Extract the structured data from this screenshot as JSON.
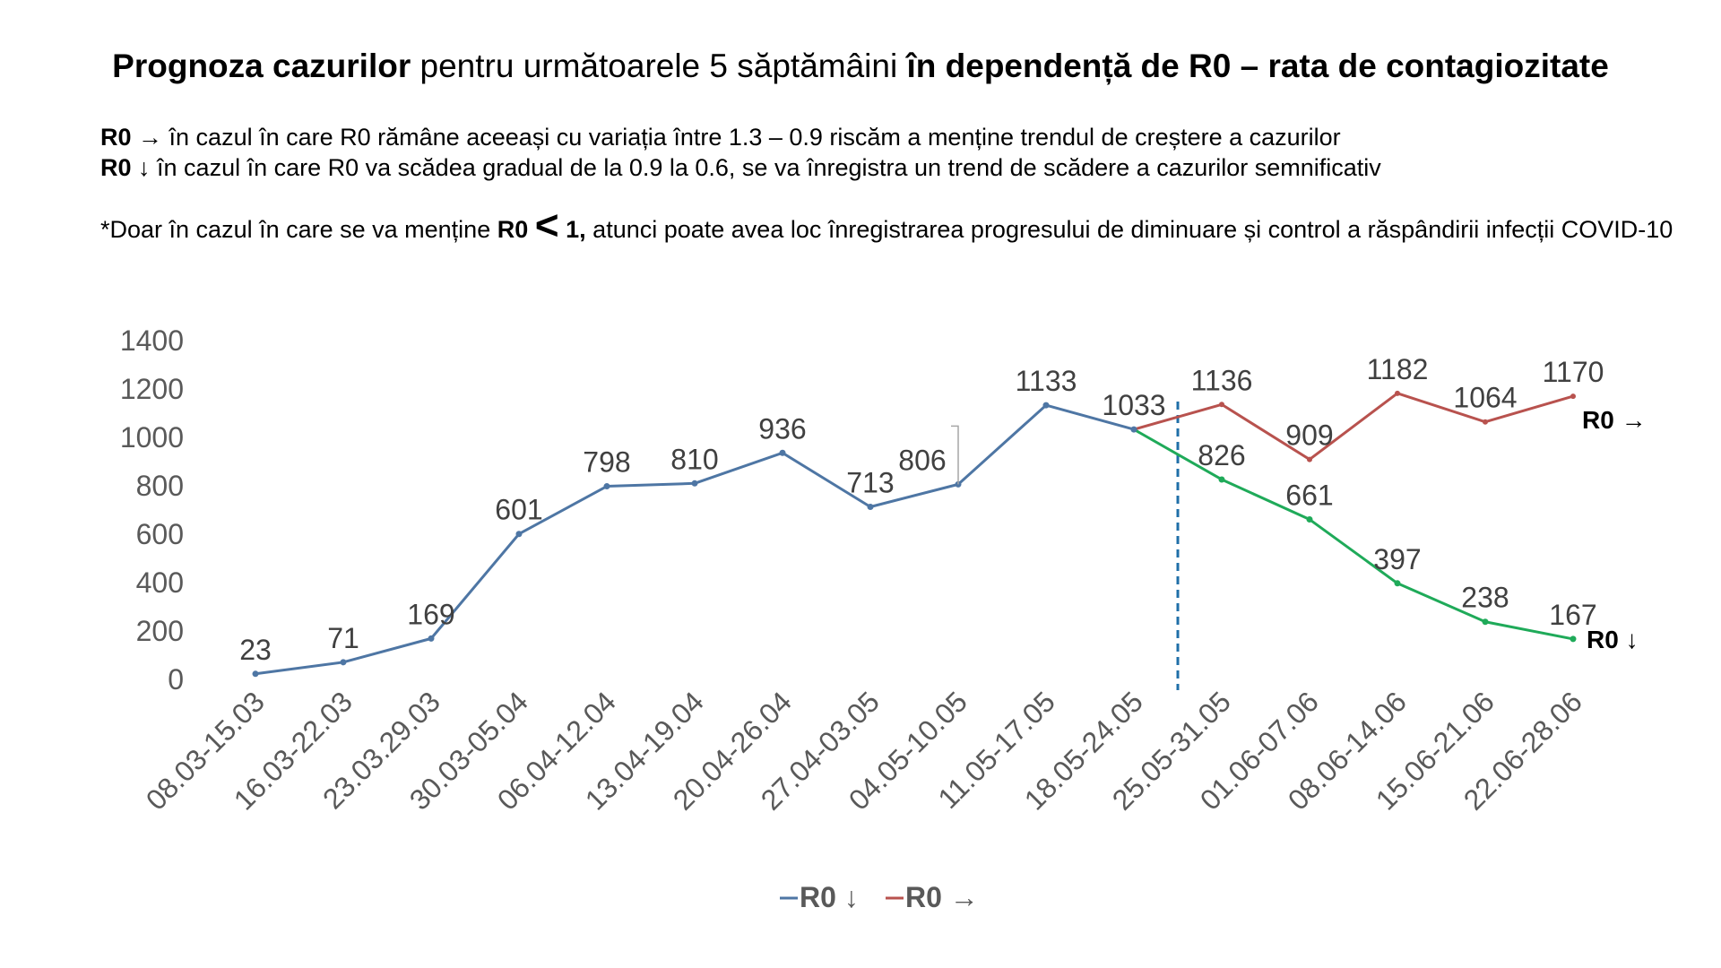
{
  "header": {
    "title_b1": "Prognoza cazurilor",
    "title_n1": " pentru următoarele 5 săptămâini ",
    "title_b2": "în dependență de R0 – rata de contagiozitate"
  },
  "notes": [
    {
      "label": "R0 →",
      "text": "  în cazul în care R0 rămâne aceeași cu variația între 1.3 – 0.9 riscăm a menține trendul de creștere a cazurilor"
    },
    {
      "label": "R0 ↓",
      "text": "  în cazul în care R0 va scădea gradual de la 0.9 la 0.6, se va înregistra un trend de scădere a cazurilor semnificativ"
    }
  ],
  "footnote": {
    "p1": "*Doar în cazul în care se va menține ",
    "r0": "R0",
    "lt": "<",
    "one": "1,",
    "p2": " atunci poate avea loc înregistrarea progresului de diminuare și control a răspândirii infecții COVID-10"
  },
  "chart_data": {
    "type": "line",
    "title": "",
    "categories": [
      "08.03-15.03",
      "16.03-22.03",
      "23.03.29.03",
      "30.03-05.04",
      "06.04-12.04",
      "13.04-19.04",
      "20.04-26.04",
      "27.04-03.05",
      "04.05-10.05",
      "11.05-17.05",
      "18.05-24.05",
      "25.05-31.05",
      "01.06-07.06",
      "08.06-14.06",
      "15.06-21.06",
      "22.06-28.06"
    ],
    "ylim": [
      0,
      1400
    ],
    "yticks": [
      "0",
      "200",
      "400",
      "600",
      "800",
      "1000",
      "1200",
      "1400"
    ],
    "forecast_start_index": 10,
    "series": [
      {
        "name": "R0 ↓",
        "history_color": "#4e76a4",
        "forecast_color": "#1faa59",
        "values": [
          23,
          71,
          169,
          601,
          798,
          810,
          936,
          713,
          806,
          1133,
          1033,
          826,
          661,
          397,
          238,
          167
        ]
      },
      {
        "name": "R0 →",
        "color": "#b8524e",
        "values": [
          null,
          null,
          null,
          null,
          null,
          null,
          null,
          null,
          null,
          null,
          1033,
          1136,
          909,
          1182,
          1064,
          1170
        ]
      }
    ],
    "end_labels": {
      "up": "R0 →",
      "down": "R0 ↓"
    },
    "legend": [
      {
        "label": "R0 ↓",
        "color": "#4e76a4"
      },
      {
        "label": "R0 →",
        "color": "#b8524e"
      }
    ],
    "divider_color": "#1f6fa8"
  }
}
